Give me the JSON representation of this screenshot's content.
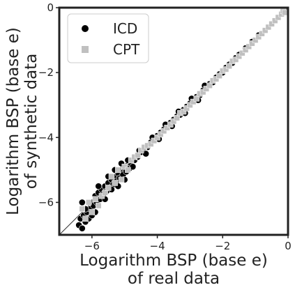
{
  "chart_data": {
    "type": "scatter",
    "xlabel_lines": [
      "Logarithm BSP (base e)",
      "of real data"
    ],
    "ylabel_lines": [
      "Logarithm BSP (base e)",
      "of synthetic data"
    ],
    "xlim": [
      -7.0,
      0.0
    ],
    "ylim": [
      -7.0,
      0.0
    ],
    "xticks": [
      -6,
      -4,
      -2,
      0
    ],
    "yticks": [
      -6,
      -4,
      -2,
      0
    ],
    "tick_labels_x": [
      "−6",
      "−4",
      "−2",
      "0"
    ],
    "tick_labels_y": [
      "−6",
      "−4",
      "−2",
      "0"
    ],
    "grid": false,
    "legend_position": "top-left",
    "reference_line": "y = x",
    "series": [
      {
        "name": "ICD",
        "marker": "circle",
        "color": "#000000",
        "points": [
          [
            -6.4,
            -6.7
          ],
          [
            -6.35,
            -6.5
          ],
          [
            -6.3,
            -6.8
          ],
          [
            -6.25,
            -6.4
          ],
          [
            -6.2,
            -6.6
          ],
          [
            -6.15,
            -6.3
          ],
          [
            -6.1,
            -6.5
          ],
          [
            -6.05,
            -6.2
          ],
          [
            -6.0,
            -6.4
          ],
          [
            -6.0,
            -6.0
          ],
          [
            -5.95,
            -6.1
          ],
          [
            -5.9,
            -5.8
          ],
          [
            -5.85,
            -6.0
          ],
          [
            -5.8,
            -5.7
          ],
          [
            -5.75,
            -5.9
          ],
          [
            -5.7,
            -5.6
          ],
          [
            -5.65,
            -5.75
          ],
          [
            -5.6,
            -5.5
          ],
          [
            -5.55,
            -5.65
          ],
          [
            -5.5,
            -5.4
          ],
          [
            -5.45,
            -5.55
          ],
          [
            -5.4,
            -5.3
          ],
          [
            -5.35,
            -5.45
          ],
          [
            -5.3,
            -5.2
          ],
          [
            -5.25,
            -5.35
          ],
          [
            -5.2,
            -5.1
          ],
          [
            -5.15,
            -5.25
          ],
          [
            -5.1,
            -5.0
          ],
          [
            -5.05,
            -5.15
          ],
          [
            -5.0,
            -4.95
          ],
          [
            -4.95,
            -5.05
          ],
          [
            -4.9,
            -4.85
          ],
          [
            -4.85,
            -4.95
          ],
          [
            -4.8,
            -4.8
          ],
          [
            -4.7,
            -4.7
          ],
          [
            -4.6,
            -4.6
          ],
          [
            -4.5,
            -4.45
          ],
          [
            -4.4,
            -4.35
          ],
          [
            -4.3,
            -4.3
          ],
          [
            -4.2,
            -4.15
          ],
          [
            -4.1,
            -4.05
          ],
          [
            -4.0,
            -3.95
          ],
          [
            -3.9,
            -3.85
          ],
          [
            -3.8,
            -3.75
          ],
          [
            -3.7,
            -3.65
          ],
          [
            -3.6,
            -3.55
          ],
          [
            -3.5,
            -3.45
          ],
          [
            -3.4,
            -3.35
          ],
          [
            -3.3,
            -3.3
          ],
          [
            -3.2,
            -3.15
          ],
          [
            -3.1,
            -3.05
          ],
          [
            -3.0,
            -2.95
          ],
          [
            -2.9,
            -2.85
          ],
          [
            -2.8,
            -2.75
          ],
          [
            -2.7,
            -2.7
          ],
          [
            -2.6,
            -2.55
          ],
          [
            -2.5,
            -2.45
          ],
          [
            -2.4,
            -2.35
          ],
          [
            -2.3,
            -2.3
          ],
          [
            -2.2,
            -2.15
          ],
          [
            -2.1,
            -2.05
          ],
          [
            -2.0,
            -2.0
          ],
          [
            -1.9,
            -1.85
          ],
          [
            -1.8,
            -1.75
          ],
          [
            -1.7,
            -1.7
          ],
          [
            -1.6,
            -1.55
          ],
          [
            -1.5,
            -1.45
          ],
          [
            -1.3,
            -1.25
          ],
          [
            -1.1,
            -1.05
          ],
          [
            -0.9,
            -0.85
          ],
          [
            -6.2,
            -6.2
          ],
          [
            -5.9,
            -6.3
          ],
          [
            -5.6,
            -5.9
          ],
          [
            -5.4,
            -5.6
          ],
          [
            -5.2,
            -5.5
          ],
          [
            -5.0,
            -5.3
          ],
          [
            -6.3,
            -6.0
          ],
          [
            -5.8,
            -5.5
          ],
          [
            -5.5,
            -5.2
          ],
          [
            -5.3,
            -5.0
          ],
          [
            -5.1,
            -4.8
          ],
          [
            -4.9,
            -4.7
          ],
          [
            -4.75,
            -4.9
          ],
          [
            -4.55,
            -4.4
          ],
          [
            -4.35,
            -4.5
          ],
          [
            -4.15,
            -4.0
          ],
          [
            -3.95,
            -4.05
          ],
          [
            -3.75,
            -3.6
          ],
          [
            -3.55,
            -3.65
          ],
          [
            -3.35,
            -3.2
          ],
          [
            -3.15,
            -3.25
          ],
          [
            -2.95,
            -2.8
          ],
          [
            -2.75,
            -2.85
          ],
          [
            -2.55,
            -2.4
          ]
        ]
      },
      {
        "name": "CPT",
        "marker": "square",
        "color": "#c0c0c0",
        "points": [
          [
            -6.3,
            -6.2
          ],
          [
            -6.2,
            -6.5
          ],
          [
            -6.1,
            -6.0
          ],
          [
            -6.0,
            -6.3
          ],
          [
            -5.9,
            -5.9
          ],
          [
            -5.8,
            -6.1
          ],
          [
            -5.7,
            -5.8
          ],
          [
            -5.6,
            -5.7
          ],
          [
            -5.5,
            -5.55
          ],
          [
            -5.4,
            -5.2
          ],
          [
            -5.3,
            -5.4
          ],
          [
            -5.2,
            -5.0
          ],
          [
            -5.1,
            -5.3
          ],
          [
            -5.0,
            -4.9
          ],
          [
            -4.9,
            -5.0
          ],
          [
            -4.8,
            -4.7
          ],
          [
            -4.7,
            -4.6
          ],
          [
            -4.6,
            -4.55
          ],
          [
            -4.5,
            -4.4
          ],
          [
            -4.4,
            -4.3
          ],
          [
            -4.3,
            -4.25
          ],
          [
            -4.2,
            -4.2
          ],
          [
            -4.1,
            -4.1
          ],
          [
            -4.0,
            -4.0
          ],
          [
            -3.9,
            -3.9
          ],
          [
            -3.8,
            -3.8
          ],
          [
            -3.7,
            -3.7
          ],
          [
            -3.6,
            -3.6
          ],
          [
            -3.5,
            -3.5
          ],
          [
            -3.4,
            -3.4
          ],
          [
            -3.3,
            -3.25
          ],
          [
            -3.2,
            -3.2
          ],
          [
            -3.1,
            -3.1
          ],
          [
            -3.0,
            -3.0
          ],
          [
            -2.9,
            -2.9
          ],
          [
            -2.8,
            -2.8
          ],
          [
            -2.7,
            -2.65
          ],
          [
            -2.6,
            -2.6
          ],
          [
            -2.5,
            -2.5
          ],
          [
            -2.4,
            -2.4
          ],
          [
            -2.3,
            -2.25
          ],
          [
            -2.2,
            -2.2
          ],
          [
            -2.1,
            -2.1
          ],
          [
            -2.0,
            -1.95
          ],
          [
            -1.9,
            -1.9
          ],
          [
            -1.8,
            -1.8
          ],
          [
            -1.7,
            -1.65
          ],
          [
            -1.6,
            -1.6
          ],
          [
            -1.5,
            -1.5
          ],
          [
            -1.4,
            -1.4
          ],
          [
            -1.3,
            -1.3
          ],
          [
            -1.2,
            -1.2
          ],
          [
            -1.1,
            -1.1
          ],
          [
            -1.0,
            -1.0
          ],
          [
            -0.9,
            -0.9
          ],
          [
            -0.8,
            -0.8
          ],
          [
            -0.7,
            -0.7
          ],
          [
            -0.6,
            -0.6
          ],
          [
            -0.5,
            -0.5
          ],
          [
            -0.4,
            -0.4
          ],
          [
            -0.3,
            -0.3
          ],
          [
            -0.2,
            -0.2
          ],
          [
            -0.15,
            -0.1
          ],
          [
            -0.1,
            -0.15
          ]
        ]
      }
    ]
  }
}
